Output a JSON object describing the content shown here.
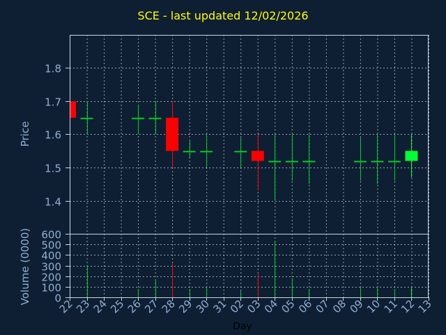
{
  "chart_data": {
    "type": "candlestick",
    "title": "SCE - last updated 12/02/2026",
    "xlabel": "Day",
    "price_panel": {
      "ylabel": "Price",
      "ylim": [
        1.3,
        1.9
      ],
      "yticks": [
        "1.4",
        "1.5",
        "1.6",
        "1.7",
        "1.8"
      ],
      "grid": true
    },
    "volume_panel": {
      "ylabel": "Volume (0000)",
      "ylim": [
        0,
        600
      ],
      "yticks": [
        "0",
        "100",
        "200",
        "300",
        "400",
        "500",
        "600"
      ],
      "grid": true
    },
    "x_tick_labels": [
      "22",
      "23",
      "24",
      "25",
      "26",
      "27",
      "28",
      "29",
      "30",
      "31",
      "02",
      "03",
      "04",
      "05",
      "06",
      "07",
      "08",
      "09",
      "10",
      "11",
      "12",
      "13"
    ],
    "candles": [
      {
        "day": "22",
        "open": 1.7,
        "high": 1.7,
        "low": 1.65,
        "close": 1.65,
        "volume": 0
      },
      {
        "day": "23",
        "open": 1.65,
        "high": 1.7,
        "low": 1.6,
        "close": 1.65,
        "volume": 300
      },
      {
        "day": "26",
        "open": 1.65,
        "high": 1.69,
        "low": 1.6,
        "close": 1.65,
        "volume": 80
      },
      {
        "day": "27",
        "open": 1.65,
        "high": 1.7,
        "low": 1.6,
        "close": 1.65,
        "volume": 160
      },
      {
        "day": "28",
        "open": 1.65,
        "high": 1.7,
        "low": 1.5,
        "close": 1.55,
        "volume": 320
      },
      {
        "day": "29",
        "open": 1.55,
        "high": 1.58,
        "low": 1.53,
        "close": 1.55,
        "volume": 80
      },
      {
        "day": "30",
        "open": 1.55,
        "high": 1.6,
        "low": 1.5,
        "close": 1.55,
        "volume": 100
      },
      {
        "day": "02",
        "open": 1.55,
        "high": 1.59,
        "low": 1.5,
        "close": 1.55,
        "volume": 60
      },
      {
        "day": "03",
        "open": 1.55,
        "high": 1.6,
        "low": 1.43,
        "close": 1.52,
        "volume": 220
      },
      {
        "day": "04",
        "open": 1.52,
        "high": 1.6,
        "low": 1.4,
        "close": 1.52,
        "volume": 530
      },
      {
        "day": "05",
        "open": 1.52,
        "high": 1.6,
        "low": 1.46,
        "close": 1.52,
        "volume": 180
      },
      {
        "day": "06",
        "open": 1.52,
        "high": 1.6,
        "low": 1.45,
        "close": 1.52,
        "volume": 80
      },
      {
        "day": "09",
        "open": 1.52,
        "high": 1.59,
        "low": 1.46,
        "close": 1.52,
        "volume": 100
      },
      {
        "day": "10",
        "open": 1.52,
        "high": 1.6,
        "low": 1.45,
        "close": 1.52,
        "volume": 100
      },
      {
        "day": "11",
        "open": 1.52,
        "high": 1.6,
        "low": 1.46,
        "close": 1.52,
        "volume": 80
      },
      {
        "day": "12",
        "open": 1.52,
        "high": 1.6,
        "low": 1.47,
        "close": 1.55,
        "volume": 100
      }
    ],
    "colors": {
      "background": "#0f1f33",
      "title": "#ffff00",
      "axis_text": "#8faed3",
      "grid": "#c8d4e2",
      "up": "#00ff33",
      "down": "#ff0000",
      "flat": "#00cc22"
    }
  }
}
